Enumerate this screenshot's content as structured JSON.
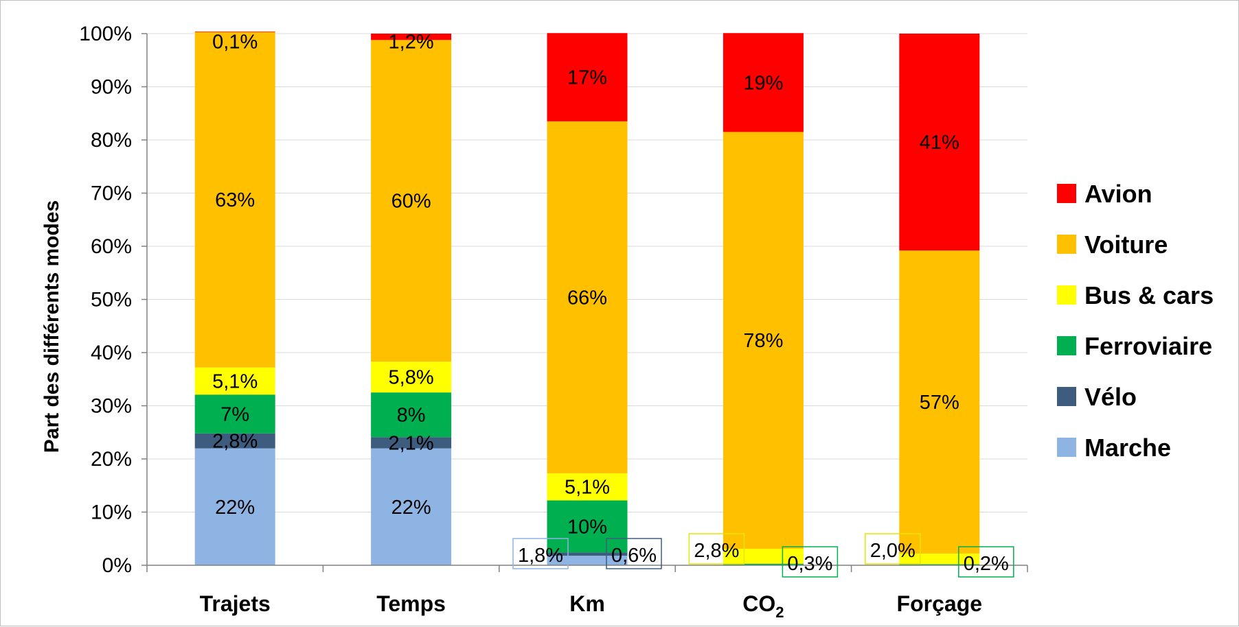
{
  "chart_data": {
    "type": "bar",
    "stacked": true,
    "percent": true,
    "ylabel": "Part des différents modes",
    "ylim": [
      0,
      100
    ],
    "yticks": [
      "0%",
      "10%",
      "20%",
      "30%",
      "40%",
      "50%",
      "60%",
      "70%",
      "80%",
      "90%",
      "100%"
    ],
    "categories": [
      "Trajets",
      "Temps",
      "Km",
      "CO2",
      "Forçage"
    ],
    "category_labels": [
      {
        "main": "Trajets",
        "sub": ""
      },
      {
        "main": "Temps",
        "sub": ""
      },
      {
        "main": "Km",
        "sub": ""
      },
      {
        "main": "CO",
        "sub": "2"
      },
      {
        "main": "Forçage",
        "sub": ""
      }
    ],
    "legend_position": "right",
    "grid": true,
    "series": [
      {
        "name": "Marche",
        "color": "#8EB4E3",
        "values": [
          22,
          22,
          1.8,
          0,
          0
        ],
        "labels": [
          "22%",
          "22%",
          "1,8%",
          "",
          ""
        ],
        "label_boxed": [
          false,
          false,
          true,
          false,
          false
        ]
      },
      {
        "name": "Vélo",
        "color": "#3E5D7E",
        "values": [
          2.8,
          2.1,
          0.6,
          0,
          0
        ],
        "labels": [
          "2,8%",
          "2,1%",
          "0,6%",
          "",
          ""
        ],
        "label_boxed": [
          false,
          false,
          true,
          false,
          false
        ]
      },
      {
        "name": "Ferroviaire",
        "color": "#00B050",
        "values": [
          7.3,
          8.4,
          9.8,
          0.3,
          0.2
        ],
        "labels": [
          "7%",
          "8%",
          "10%",
          "0,3%",
          "0,2%"
        ],
        "label_boxed": [
          false,
          false,
          false,
          true,
          true
        ]
      },
      {
        "name": "Bus & cars",
        "color": "#FFFF00",
        "values": [
          5.1,
          5.8,
          5.1,
          2.8,
          2.0
        ],
        "labels": [
          "5,1%",
          "5,8%",
          "5,1%",
          "2,8%",
          "2,0%"
        ],
        "label_boxed": [
          false,
          false,
          false,
          true,
          true
        ]
      },
      {
        "name": "Voiture",
        "color": "#FFC000",
        "values": [
          63.1,
          60.5,
          66.2,
          78.4,
          57.0
        ],
        "labels": [
          "63%",
          "60%",
          "66%",
          "78%",
          "57%"
        ],
        "label_boxed": [
          false,
          false,
          false,
          false,
          false
        ]
      },
      {
        "name": "Avion",
        "color": "#FF0000",
        "values": [
          0.1,
          1.2,
          16.6,
          18.6,
          40.8
        ],
        "labels": [
          "0,1%",
          "1,2%",
          "17%",
          "19%",
          "41%"
        ],
        "label_boxed": [
          false,
          false,
          false,
          false,
          false
        ]
      }
    ],
    "legend_order": [
      "Avion",
      "Voiture",
      "Bus & cars",
      "Ferroviaire",
      "Vélo",
      "Marche"
    ]
  }
}
